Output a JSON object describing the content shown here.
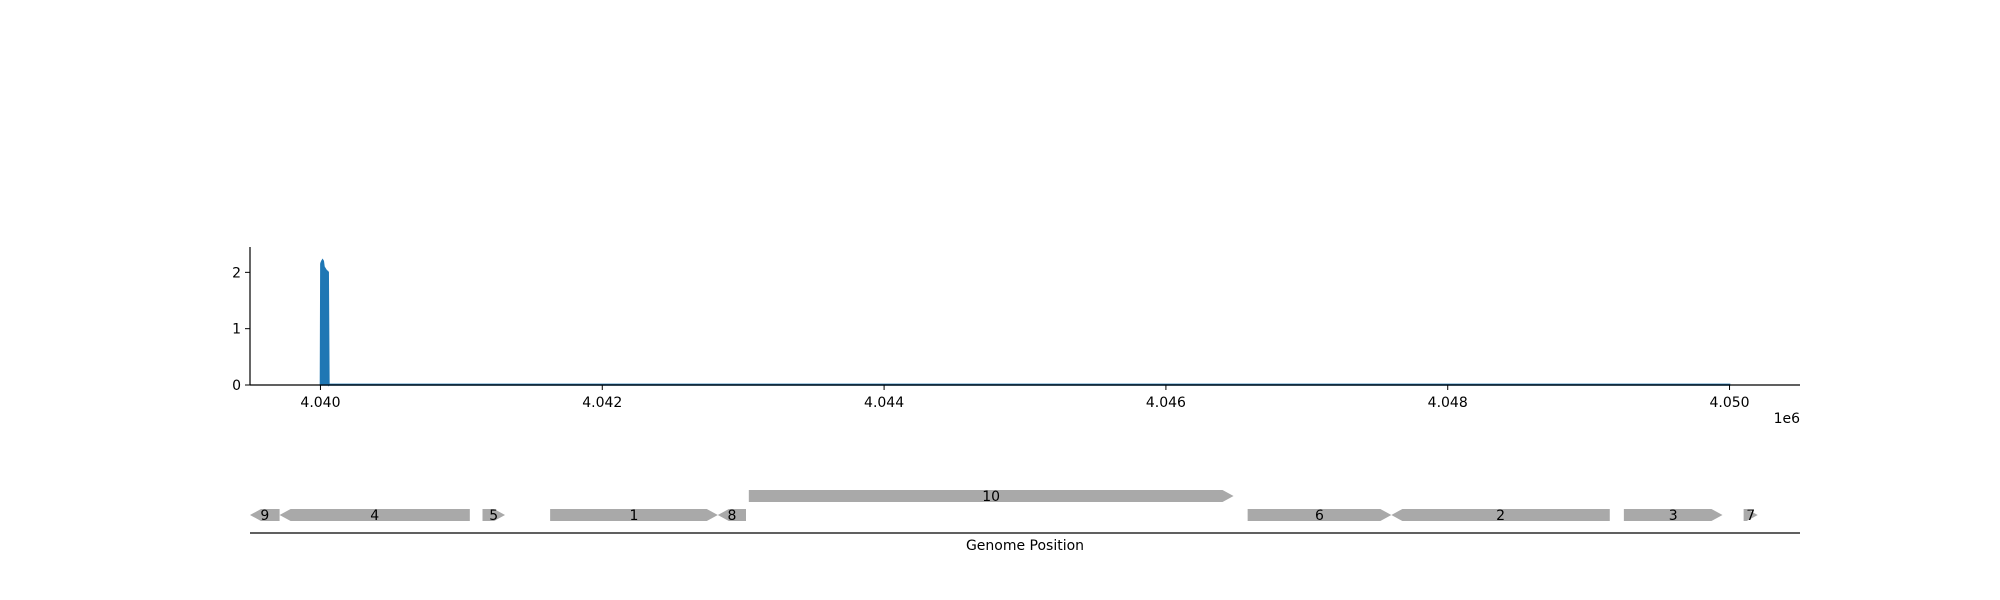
{
  "chart_data": [
    {
      "type": "area",
      "xlim": [
        4039500,
        4050500
      ],
      "ylim": [
        0,
        2.45
      ],
      "x_ticks": [
        4040000,
        4042000,
        4044000,
        4046000,
        4048000,
        4050000
      ],
      "x_tick_labels": [
        "4.040",
        "4.042",
        "4.044",
        "4.046",
        "4.048",
        "4.050"
      ],
      "x_offset_label": "1e6",
      "y_ticks": [
        0,
        1,
        2
      ],
      "y_tick_labels": [
        "0",
        "1",
        "2"
      ],
      "grid": false,
      "series": [
        {
          "color": "#1f77b4",
          "x": [
            4040000,
            4040003,
            4040005,
            4040010,
            4040015,
            4040020,
            4040025,
            4040030,
            4040035,
            4040040,
            4040045,
            4040050,
            4040055,
            4040060,
            4040065,
            4040070,
            4050000
          ],
          "values": [
            0,
            2.15,
            2.17,
            2.2,
            2.22,
            2.2,
            2.1,
            2.08,
            2.06,
            2.04,
            2.02,
            2.02,
            2.0,
            0,
            0.01,
            0.01,
            0.01
          ]
        }
      ]
    },
    {
      "type": "gene-map",
      "xlabel": "Genome Position",
      "xlim": [
        4039500,
        4050500
      ],
      "feature_color": "#a9a9a9",
      "genes": [
        {
          "label": "9",
          "start": 4039500,
          "end": 4039710,
          "strand": -1,
          "row": 0
        },
        {
          "label": "4",
          "start": 4039710,
          "end": 4041060,
          "strand": -1,
          "row": 0
        },
        {
          "label": "5",
          "start": 4041150,
          "end": 4041310,
          "strand": 1,
          "row": 0
        },
        {
          "label": "1",
          "start": 4041630,
          "end": 4042820,
          "strand": 1,
          "row": 0
        },
        {
          "label": "8",
          "start": 4042820,
          "end": 4043020,
          "strand": -1,
          "row": 0
        },
        {
          "label": "10",
          "start": 4043040,
          "end": 4046480,
          "strand": 1,
          "row": 1
        },
        {
          "label": "6",
          "start": 4046580,
          "end": 4047600,
          "strand": 1,
          "row": 0
        },
        {
          "label": "2",
          "start": 4047600,
          "end": 4049150,
          "strand": -1,
          "row": 0
        },
        {
          "label": "3",
          "start": 4049250,
          "end": 4049950,
          "strand": 1,
          "row": 0
        },
        {
          "label": "7",
          "start": 4050100,
          "end": 4050200,
          "strand": 1,
          "row": 0
        }
      ]
    }
  ]
}
